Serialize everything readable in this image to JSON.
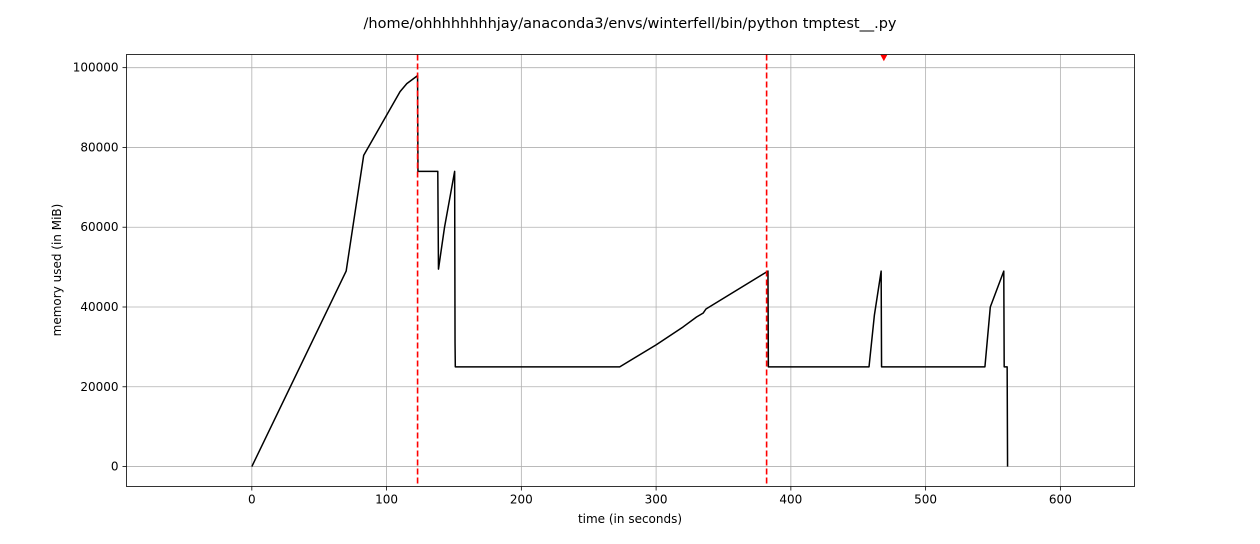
{
  "chart_data": {
    "type": "line",
    "title": "/home/ohhhhhhhhjay/anaconda3/envs/winterfell/bin/python tmptest__.py",
    "xlabel": "time (in seconds)",
    "ylabel": "memory used (in MiB)",
    "xlim": [
      -93,
      655
    ],
    "ylim": [
      -5000,
      103300
    ],
    "grid": true,
    "xticks": [
      0,
      100,
      200,
      300,
      400,
      500,
      600
    ],
    "xtick_labels": [
      "0",
      "100",
      "200",
      "300",
      "400",
      "500",
      "600"
    ],
    "yticks": [
      0,
      20000,
      40000,
      60000,
      80000,
      100000
    ],
    "ytick_labels": [
      "0",
      "20000",
      "40000",
      "60000",
      "80000",
      "100000"
    ],
    "series": [
      {
        "color": "#000000",
        "x": [
          0,
          70,
          83,
          110,
          115,
          123,
          123.3,
          138,
          138.5,
          143,
          150.5,
          150.8,
          151,
          152,
          200,
          273,
          300,
          320,
          330,
          335,
          337,
          383,
          383.3,
          420,
          458,
          462,
          467,
          467.3,
          500,
          544,
          548,
          558,
          558.3,
          560.5,
          560.8
        ],
        "y": [
          0,
          49000,
          78000,
          94000,
          96000,
          98000,
          74000,
          74000,
          49500,
          60000,
          74000,
          31000,
          25000,
          25000,
          25000,
          25000,
          30500,
          35000,
          37500,
          38500,
          39500,
          49000,
          25000,
          25000,
          25000,
          38000,
          49000,
          25000,
          25000,
          25000,
          40000,
          49000,
          25000,
          25000,
          0
        ]
      }
    ],
    "vlines": [
      {
        "x": 123,
        "color": "#ff0000",
        "style": "dashed"
      },
      {
        "x": 382,
        "color": "#ff0000",
        "style": "dashed"
      }
    ],
    "markers": [
      {
        "x": 469,
        "y": 102500,
        "color": "#ff0000",
        "shape": "down-triangle"
      }
    ]
  }
}
